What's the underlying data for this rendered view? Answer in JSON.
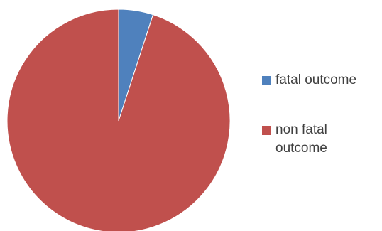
{
  "chart_data": {
    "type": "pie",
    "title": "",
    "slices": [
      {
        "label": "fatal outcome",
        "value": 5,
        "color": "#4f81bd"
      },
      {
        "label": "non fatal outcome",
        "value": 95,
        "color": "#c0504d"
      }
    ],
    "legend_position": "right"
  },
  "legend": {
    "items": [
      {
        "label": "fatal outcome"
      },
      {
        "label": "non fatal outcome"
      }
    ]
  }
}
